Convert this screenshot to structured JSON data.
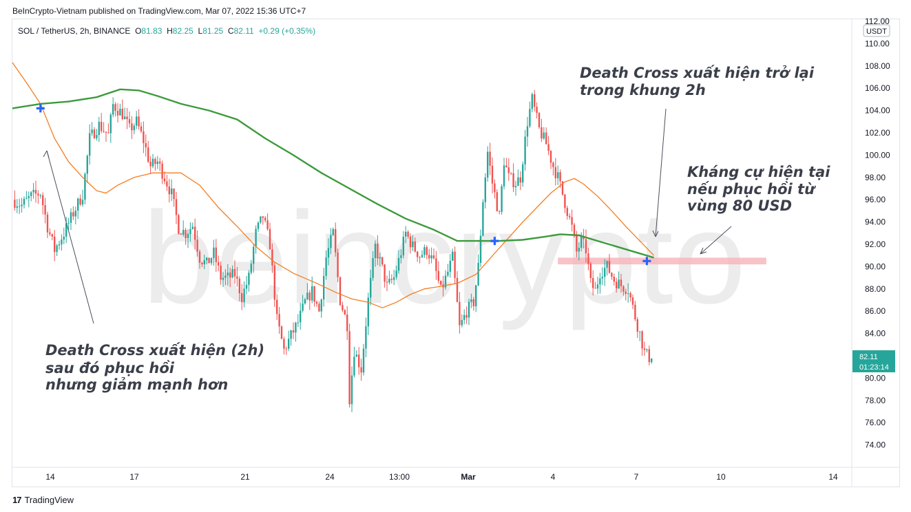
{
  "header": {
    "published": "BeInCrypto-Vietnam published on TradingView.com, Mar 07, 2022 15:36 UTC+7"
  },
  "legend": {
    "symbol": "SOL / TetherUS, 2h, BINANCE",
    "o_label": "O",
    "o_value": "81.83",
    "h_label": "H",
    "h_value": "82.25",
    "l_label": "L",
    "l_value": "81.25",
    "c_label": "C",
    "c_value": "82.11",
    "change": "+0.29 (+0.35%)"
  },
  "footer": {
    "brand": "TradingView"
  },
  "watermark": {
    "text": "beincrypto"
  },
  "colors": {
    "up": "#26a69a",
    "down": "#ef5350",
    "ma_fast": "#f57c1f",
    "ma_slow": "#3c9a3c",
    "cross_marker": "#2962ff",
    "resistance_zone": "#f7b7bd",
    "price_tag": "#26a69a"
  },
  "annotations": [
    {
      "lines": [
        "Death Cross xuất hiện (2h)",
        "sau đó phục hồi",
        "nhưng giảm mạnh hơn"
      ]
    },
    {
      "lines": [
        "Death Cross xuất hiện trở lại",
        "trong khung 2h"
      ]
    },
    {
      "lines": [
        "Kháng cự hiện tại",
        "nếu phục hồi từ",
        "vùng 80 USD"
      ]
    }
  ],
  "chart_data": {
    "type": "candlestick",
    "title": "SOL / TetherUS, 2h, BINANCE",
    "ylim": [
      72,
      112
    ],
    "y_ticks": [
      "112.00",
      "110.00",
      "108.00",
      "106.00",
      "104.00",
      "102.00",
      "100.00",
      "98.00",
      "96.00",
      "94.00",
      "92.00",
      "90.00",
      "88.00",
      "86.00",
      "84.00",
      "82.00",
      "80.00",
      "78.00",
      "76.00",
      "74.00"
    ],
    "x_ticks": [
      "14",
      "17",
      "21",
      "24",
      "13:00",
      "Mar",
      "4",
      "7",
      "10",
      "14"
    ],
    "currency": "USDT",
    "last_price": "82.11",
    "countdown": "01:23:14",
    "series": [
      {
        "name": "",
        "kind": "ma_fast",
        "points": [
          [
            0,
            108.3
          ],
          [
            6,
            106.5
          ],
          [
            12,
            104.6
          ],
          [
            18,
            101.5
          ],
          [
            24,
            99.4
          ],
          [
            30,
            98.0
          ],
          [
            36,
            96.8
          ],
          [
            40,
            96.6
          ],
          [
            45,
            97.3
          ],
          [
            52,
            98.0
          ],
          [
            60,
            98.4
          ],
          [
            72,
            98.4
          ],
          [
            80,
            97.3
          ],
          [
            88,
            95.3
          ],
          [
            96,
            93.6
          ],
          [
            104,
            91.8
          ],
          [
            112,
            90.4
          ],
          [
            120,
            89.4
          ],
          [
            130,
            88.5
          ],
          [
            138,
            87.7
          ],
          [
            145,
            87.1
          ],
          [
            152,
            86.8
          ],
          [
            158,
            86.3
          ],
          [
            164,
            86.8
          ],
          [
            170,
            87.5
          ],
          [
            176,
            88.0
          ],
          [
            182,
            88.2
          ],
          [
            190,
            88.5
          ],
          [
            198,
            89.3
          ],
          [
            206,
            91.2
          ],
          [
            212,
            92.6
          ],
          [
            218,
            94.0
          ],
          [
            224,
            95.3
          ],
          [
            230,
            96.6
          ],
          [
            236,
            97.6
          ],
          [
            240,
            97.9
          ],
          [
            244,
            97.4
          ],
          [
            250,
            96.3
          ],
          [
            256,
            95.0
          ],
          [
            262,
            93.6
          ],
          [
            268,
            92.3
          ],
          [
            274,
            91.0
          ]
        ]
      },
      {
        "name": "",
        "kind": "ma_slow",
        "points": [
          [
            0,
            104.2
          ],
          [
            12,
            104.6
          ],
          [
            24,
            104.8
          ],
          [
            36,
            105.2
          ],
          [
            46,
            105.9
          ],
          [
            54,
            105.8
          ],
          [
            62,
            105.3
          ],
          [
            72,
            104.6
          ],
          [
            84,
            104.0
          ],
          [
            96,
            103.2
          ],
          [
            108,
            101.5
          ],
          [
            120,
            100.0
          ],
          [
            132,
            98.4
          ],
          [
            144,
            97.0
          ],
          [
            156,
            95.6
          ],
          [
            168,
            94.3
          ],
          [
            180,
            93.3
          ],
          [
            190,
            92.3
          ],
          [
            198,
            92.3
          ],
          [
            208,
            92.3
          ],
          [
            218,
            92.4
          ],
          [
            228,
            92.7
          ],
          [
            234,
            92.9
          ],
          [
            242,
            92.8
          ],
          [
            250,
            92.3
          ],
          [
            258,
            91.8
          ],
          [
            266,
            91.3
          ],
          [
            274,
            90.8
          ]
        ]
      }
    ],
    "ohlc_anchors": [
      [
        0,
        96.0
      ],
      [
        4,
        95.5
      ],
      [
        8,
        96.3
      ],
      [
        12,
        96.6
      ],
      [
        15,
        93.6
      ],
      [
        18,
        91.5
      ],
      [
        22,
        93.0
      ],
      [
        26,
        94.8
      ],
      [
        30,
        96.5
      ],
      [
        33,
        101.5
      ],
      [
        37,
        102.7
      ],
      [
        41,
        101.8
      ],
      [
        43,
        104.5
      ],
      [
        47,
        103.7
      ],
      [
        50,
        102.3
      ],
      [
        53,
        103.0
      ],
      [
        56,
        101.3
      ],
      [
        59,
        99.0
      ],
      [
        62,
        99.4
      ],
      [
        65,
        98.0
      ],
      [
        68,
        96.5
      ],
      [
        71,
        93.5
      ],
      [
        74,
        93.0
      ],
      [
        77,
        93.7
      ],
      [
        80,
        90.8
      ],
      [
        83,
        90.2
      ],
      [
        86,
        91.2
      ],
      [
        89,
        89.0
      ],
      [
        92,
        89.0
      ],
      [
        95,
        89.3
      ],
      [
        98,
        87.3
      ],
      [
        101,
        89.0
      ],
      [
        104,
        93.0
      ],
      [
        107,
        94.5
      ],
      [
        110,
        92.0
      ],
      [
        113,
        85.2
      ],
      [
        116,
        82.5
      ],
      [
        119,
        83.8
      ],
      [
        122,
        85.0
      ],
      [
        125,
        86.8
      ],
      [
        128,
        87.8
      ],
      [
        131,
        86.0
      ],
      [
        134,
        90.8
      ],
      [
        137,
        93.0
      ],
      [
        140,
        87.0
      ],
      [
        143,
        84.8
      ],
      [
        144,
        78.2
      ],
      [
        146,
        82.5
      ],
      [
        149,
        80.8
      ],
      [
        152,
        87.0
      ],
      [
        155,
        91.8
      ],
      [
        158,
        89.8
      ],
      [
        160,
        88.2
      ],
      [
        163,
        89.0
      ],
      [
        166,
        91.3
      ],
      [
        168,
        93.0
      ],
      [
        171,
        91.8
      ],
      [
        174,
        91.0
      ],
      [
        177,
        91.5
      ],
      [
        180,
        90.3
      ],
      [
        183,
        87.8
      ],
      [
        186,
        89.5
      ],
      [
        188,
        90.8
      ],
      [
        191,
        84.5
      ],
      [
        194,
        86.0
      ],
      [
        197,
        86.8
      ],
      [
        199,
        90.0
      ],
      [
        201,
        96.0
      ],
      [
        203,
        100.3
      ],
      [
        205,
        97.5
      ],
      [
        208,
        94.5
      ],
      [
        210,
        99.5
      ],
      [
        212,
        98.0
      ],
      [
        215,
        97.5
      ],
      [
        217,
        98.0
      ],
      [
        220,
        103.0
      ],
      [
        222,
        105.0
      ],
      [
        225,
        102.3
      ],
      [
        228,
        101.0
      ],
      [
        231,
        99.0
      ],
      [
        233,
        98.0
      ],
      [
        235,
        96.5
      ],
      [
        237,
        95.0
      ],
      [
        239,
        93.5
      ],
      [
        241,
        91.3
      ],
      [
        243,
        92.3
      ],
      [
        245,
        91.5
      ],
      [
        247,
        88.5
      ],
      [
        249,
        87.8
      ],
      [
        251,
        89.5
      ],
      [
        254,
        90.0
      ],
      [
        257,
        88.8
      ],
      [
        260,
        88.3
      ],
      [
        263,
        88.0
      ],
      [
        266,
        85.5
      ],
      [
        268,
        84.0
      ],
      [
        270,
        82.3
      ],
      [
        272,
        81.83
      ],
      [
        273,
        82.11
      ]
    ],
    "cross_markers": [
      {
        "index": 12,
        "price": 104.2
      },
      {
        "index": 206,
        "price": 92.3
      },
      {
        "index": 271,
        "price": 90.5
      }
    ],
    "resistance_zone": {
      "from_index": 233,
      "to_index": 322,
      "low": 90.2,
      "high": 90.8
    }
  }
}
